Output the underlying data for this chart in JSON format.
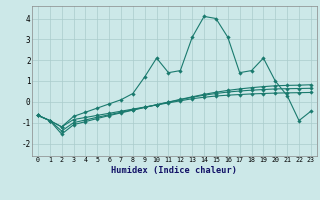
{
  "xlabel": "Humidex (Indice chaleur)",
  "bg_color": "#cce8e8",
  "line_color": "#1a7a6e",
  "xlim": [
    -0.5,
    23.5
  ],
  "ylim": [
    -2.6,
    4.6
  ],
  "yticks": [
    -2,
    -1,
    0,
    1,
    2,
    3,
    4
  ],
  "xticks": [
    0,
    1,
    2,
    3,
    4,
    5,
    6,
    7,
    8,
    9,
    10,
    11,
    12,
    13,
    14,
    15,
    16,
    17,
    18,
    19,
    20,
    21,
    22,
    23
  ],
  "s1_x": [
    0,
    1,
    2,
    3,
    4,
    5,
    6,
    7,
    8,
    9,
    10,
    11,
    12,
    13,
    14,
    15,
    16,
    17,
    18,
    19,
    20,
    21,
    22,
    23
  ],
  "s1_y": [
    -0.65,
    -0.9,
    -1.2,
    -0.85,
    -0.75,
    -0.65,
    -0.55,
    -0.45,
    -0.35,
    -0.25,
    -0.15,
    -0.05,
    0.05,
    0.15,
    0.22,
    0.28,
    0.32,
    0.35,
    0.38,
    0.4,
    0.42,
    0.43,
    0.44,
    0.45
  ],
  "s2_x": [
    0,
    1,
    2,
    3,
    4,
    5,
    6,
    7,
    8,
    9,
    10,
    11,
    12,
    13,
    14,
    15,
    16,
    17,
    18,
    19,
    20,
    21,
    22,
    23
  ],
  "s2_y": [
    -0.65,
    -0.9,
    -1.4,
    -1.0,
    -0.87,
    -0.74,
    -0.62,
    -0.5,
    -0.38,
    -0.26,
    -0.14,
    -0.02,
    0.1,
    0.22,
    0.32,
    0.4,
    0.47,
    0.52,
    0.56,
    0.59,
    0.62,
    0.63,
    0.64,
    0.65
  ],
  "s3_x": [
    0,
    1,
    2,
    3,
    4,
    5,
    6,
    7,
    8,
    9,
    10,
    11,
    12,
    13,
    14,
    15,
    16,
    17,
    18,
    19,
    20,
    21,
    22,
    23
  ],
  "s3_y": [
    -0.65,
    -0.9,
    -1.55,
    -1.1,
    -0.95,
    -0.8,
    -0.66,
    -0.53,
    -0.4,
    -0.27,
    -0.14,
    -0.01,
    0.12,
    0.24,
    0.36,
    0.46,
    0.55,
    0.62,
    0.68,
    0.73,
    0.77,
    0.79,
    0.8,
    0.82
  ],
  "s4_x": [
    0,
    1,
    2,
    3,
    4,
    5,
    6,
    7,
    8,
    9,
    10,
    11,
    12,
    13,
    14,
    15,
    16,
    17,
    18,
    19,
    20,
    21,
    22,
    23
  ],
  "s4_y": [
    -0.65,
    -0.9,
    -1.2,
    -0.7,
    -0.5,
    -0.3,
    -0.1,
    0.1,
    0.4,
    1.2,
    2.1,
    1.4,
    1.5,
    3.1,
    4.1,
    4.0,
    3.1,
    1.4,
    1.5,
    2.1,
    1.0,
    0.3,
    -0.9,
    -0.45
  ]
}
